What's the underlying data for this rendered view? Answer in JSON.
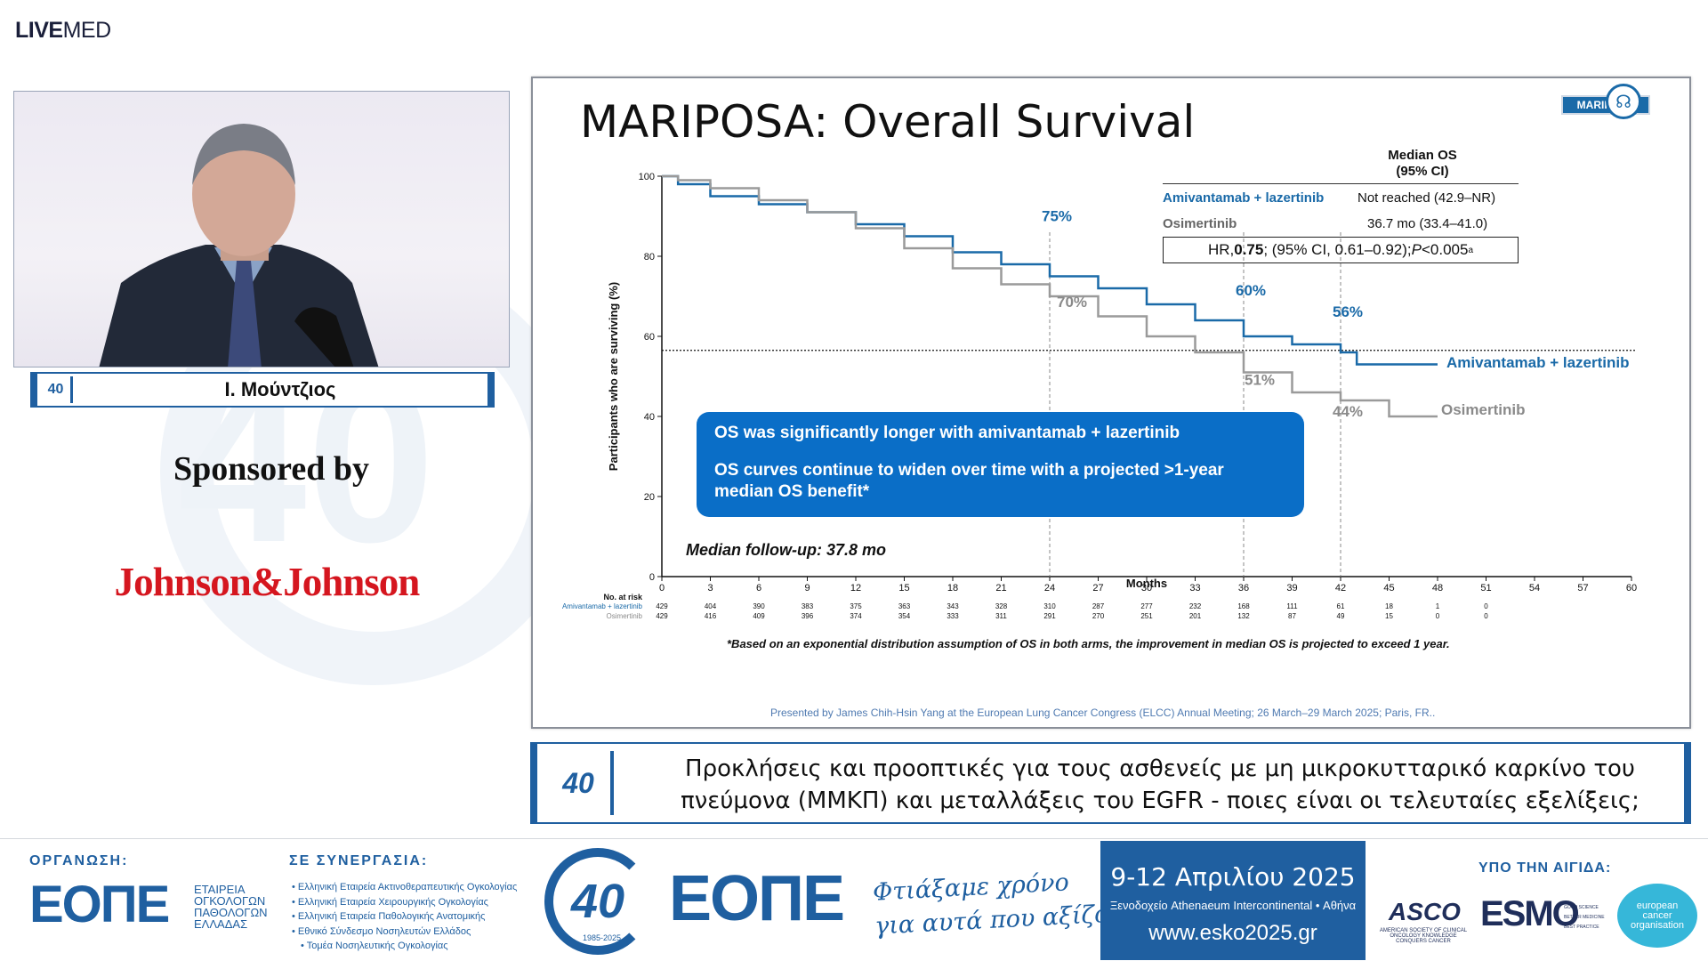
{
  "brand": {
    "live": "LIVE",
    "med": "MED"
  },
  "speaker": {
    "badge": "40",
    "name": "Ι. Μούντζιος"
  },
  "sponsor": {
    "label": "Sponsored by",
    "company": "Johnson&Johnson"
  },
  "slide": {
    "title": "MARIPOSA: Overall Survival",
    "logo_tag": "MARIPOSA",
    "median_header_line1": "Median OS",
    "median_header_line2": "(95% CI)",
    "arm1_name": "Amivantamab + lazertinib",
    "arm1_median": "Not reached (42.9–NR)",
    "arm2_name": "Osimertinib",
    "arm2_median": "36.7 mo (33.4–41.0)",
    "hr_pre": "HR, ",
    "hr_value": "0.75",
    "hr_ci": "; (95% CI, 0.61–0.92); ",
    "hr_p": "P",
    "hr_p_val": "<0.005",
    "hr_sup": "a",
    "callout_line1": "OS was significantly longer with amivantamab + lazertinib",
    "callout_line2": "OS curves continue to widen over time with a projected >1-year median OS benefit*",
    "median_followup": "Median follow-up: 37.8 mo",
    "footnote": "*Based on an exponential distribution assumption of OS in both arms, the improvement in median OS is projected to exceed 1 year.",
    "presented_by": "Presented by James Chih-Hsin Yang at the European Lung Cancer Congress (ELCC) Annual Meeting; 26 March–29 March 2025; Paris, FR.."
  },
  "chart_data": {
    "type": "line",
    "ylabel": "Participants who are surviving (%)",
    "xlabel": "Months",
    "ylim": [
      0,
      100
    ],
    "xlim": [
      0,
      60
    ],
    "y_ticks": [
      0,
      20,
      40,
      60,
      80,
      100
    ],
    "x_ticks": [
      0,
      3,
      6,
      9,
      12,
      15,
      18,
      21,
      24,
      27,
      30,
      33,
      36,
      39,
      42,
      45,
      48,
      51,
      54,
      57,
      60
    ],
    "reference_line_y": 56.5,
    "series": [
      {
        "name": "Amivantamab + lazertinib",
        "color": "#1a6aa8",
        "x": [
          0,
          1,
          3,
          6,
          9,
          12,
          15,
          18,
          21,
          24,
          27,
          30,
          33,
          36,
          39,
          42,
          43,
          45,
          48
        ],
        "y": [
          100,
          98,
          95,
          93,
          91,
          88,
          85,
          81,
          78,
          75,
          72,
          68,
          64,
          60,
          58,
          56,
          53,
          53,
          53
        ]
      },
      {
        "name": "Osimertinib",
        "color": "#9a9a9a",
        "x": [
          0,
          1,
          3,
          6,
          9,
          12,
          15,
          18,
          21,
          24,
          27,
          30,
          33,
          36,
          39,
          42,
          45,
          48
        ],
        "y": [
          100,
          99,
          97,
          94,
          91,
          87,
          82,
          77,
          73,
          70,
          65,
          60,
          56,
          51,
          46,
          44,
          40,
          40
        ]
      }
    ],
    "annotations": [
      {
        "x": 24,
        "label_ami": "75%",
        "label_osi": "70%"
      },
      {
        "x": 36,
        "label_ami": "60%",
        "label_osi": "51%"
      },
      {
        "x": 42,
        "label_ami": "56%",
        "label_osi": "44%"
      }
    ],
    "risk_table": {
      "header": "No. at risk",
      "rows": [
        {
          "name": "Amivantamab + lazertinib",
          "values": [
            "429",
            "404",
            "390",
            "383",
            "375",
            "363",
            "343",
            "328",
            "310",
            "287",
            "277",
            "232",
            "168",
            "111",
            "61",
            "18",
            "1",
            "0"
          ]
        },
        {
          "name": "Osimertinib",
          "values": [
            "429",
            "416",
            "409",
            "396",
            "374",
            "354",
            "333",
            "311",
            "291",
            "270",
            "251",
            "201",
            "132",
            "87",
            "49",
            "15",
            "0",
            "0"
          ]
        }
      ]
    },
    "curve_labels": {
      "ami": "Amivantamab + lazertinib",
      "osi": "Osimertinib"
    }
  },
  "topic": {
    "badge": "40",
    "text": "Προκλήσεις και προοπτικές για τους ασθενείς με μη μικροκυτταρικό καρκίνο του πνεύμονα (ΜΜΚΠ) και μεταλλάξεις του EGFR - ποιες είναι οι τελευταίες εξελίξεις;"
  },
  "footer": {
    "org_label": "ΟΡΓΑΝΩΣΗ:",
    "org_logo": "ΕΟΠΕ",
    "org_name_1": "ΕΤΑΙΡΕΙΑ",
    "org_name_2": "ΟΓΚΟΛΟΓΩΝ",
    "org_name_3": "ΠΑΘΟΛΟΓΩΝ",
    "org_name_4": "ΕΛΛΑΔΑΣ",
    "collab_label": "ΣΕ ΣΥΝΕΡΓΑΣΙΑ:",
    "collab_1": "Ελληνική Εταιρεία Ακτινοθεραπευτικής Ογκολογίας",
    "collab_2": "Ελληνική Εταιρεία Χειρουργικής Ογκολογίας",
    "collab_3": "Ελληνική Εταιρεία Παθολογικής Ανατομικής",
    "collab_4": "Εθνικό Σύνδεσμο Νοσηλευτών Ελλάδος",
    "collab_5": "Τομέα Νοσηλευτικής Ογκολογίας",
    "anniversary": "40",
    "years": "1985-2025",
    "espe": "ΕΟΠΕ",
    "slogan_1": "Φτιάξαμε χρόνο",
    "slogan_2": "για αυτά που αξίζουν",
    "dates": "9-12 Απριλίου 2025",
    "venue": "Ξενοδοχείο Athenaeum Intercontinental • Αθήνα",
    "website": "www.esko2025.gr",
    "aegis_label": "ΥΠΟ ΤΗΝ ΑΙΓΙΔΑ:",
    "asco": "ASCO",
    "asco_sub": "AMERICAN SOCIETY OF CLINICAL ONCOLOGY KNOWLEDGE CONQUERS CANCER",
    "esmo": "ESMO",
    "esmo_sub_1": "GOOD SCIENCE",
    "esmo_sub_2": "BETTER MEDICINE",
    "esmo_sub_3": "BEST PRACTICE",
    "eco_1": "european",
    "eco_2": "cancer",
    "eco_3": "organisation"
  }
}
